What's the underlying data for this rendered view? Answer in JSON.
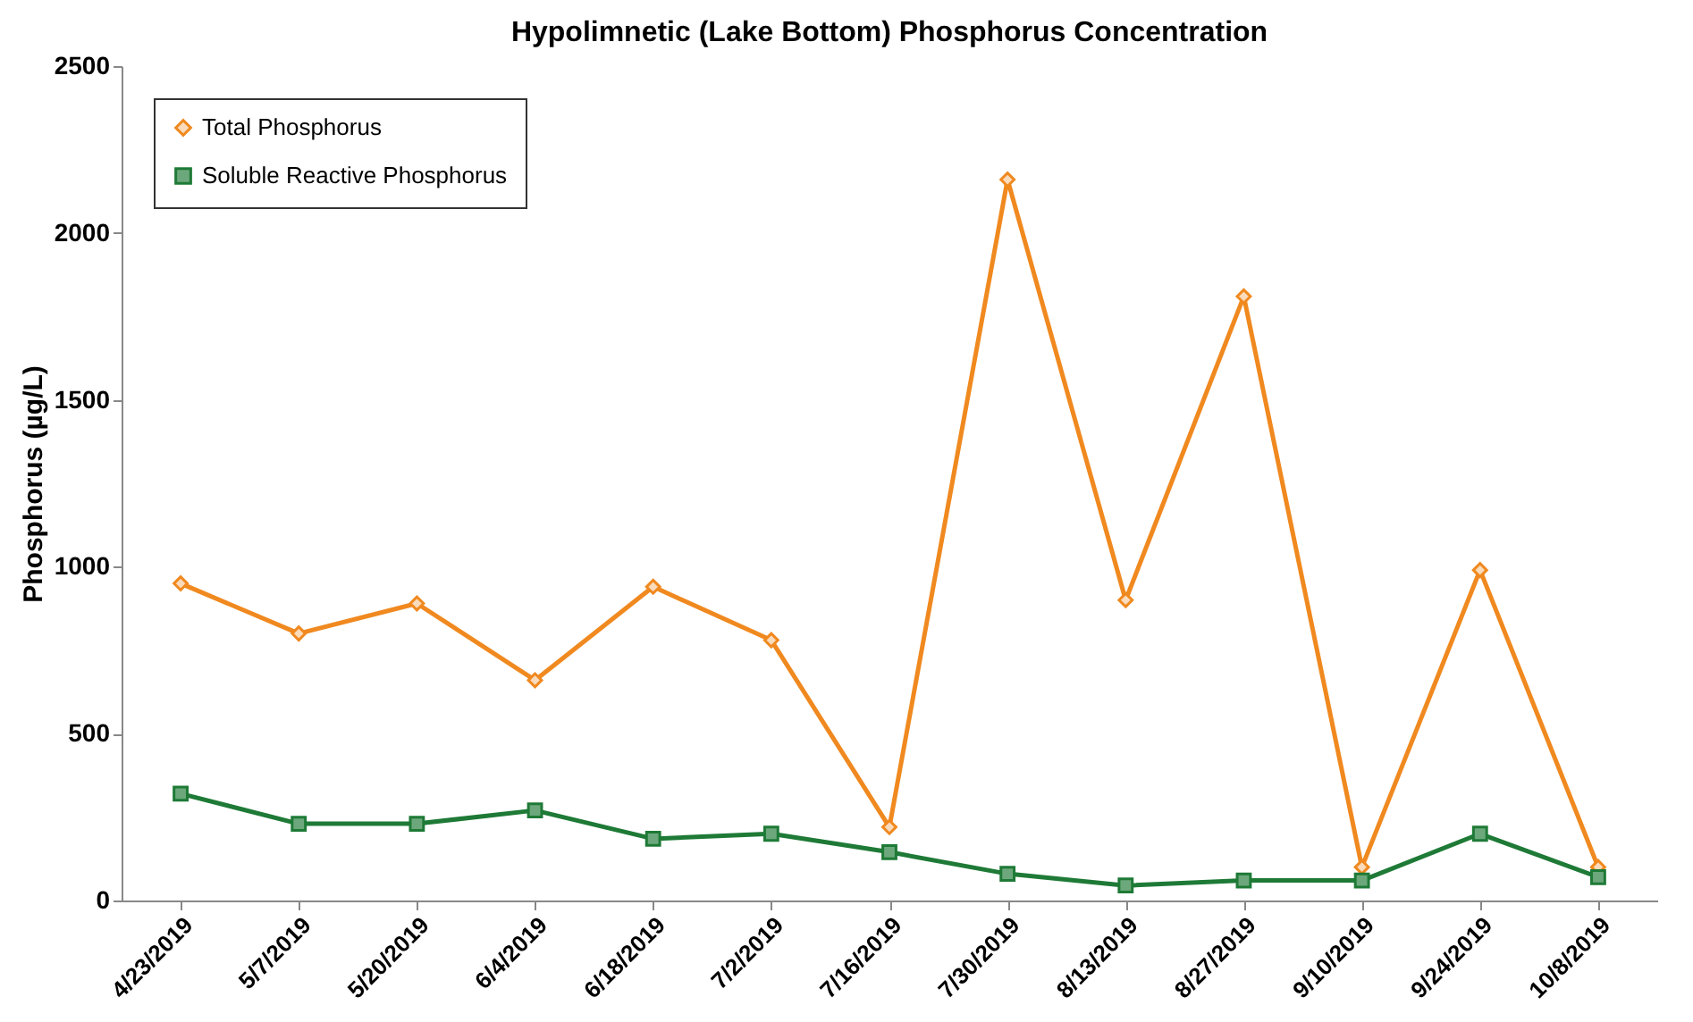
{
  "chart_data": {
    "type": "line",
    "title": "Hypolimnetic (Lake Bottom) Phosphorus Concentration",
    "ylabel": "Phosphorus (µg/L)",
    "categories": [
      "4/23/2019",
      "5/7/2019",
      "5/20/2019",
      "6/4/2019",
      "6/18/2019",
      "7/2/2019",
      "7/16/2019",
      "7/30/2019",
      "8/13/2019",
      "8/27/2019",
      "9/10/2019",
      "9/24/2019",
      "10/8/2019"
    ],
    "series": [
      {
        "name": "Total Phosphorus",
        "color": "#f0891f",
        "marker": "diamond",
        "values": [
          950,
          800,
          890,
          660,
          940,
          780,
          220,
          2160,
          900,
          1810,
          100,
          990,
          100
        ]
      },
      {
        "name": "Soluble Reactive Phosphorus",
        "color": "#1e7a36",
        "marker": "square",
        "values": [
          320,
          230,
          230,
          270,
          185,
          200,
          145,
          80,
          45,
          60,
          60,
          200,
          70
        ]
      }
    ],
    "ylim": [
      0,
      2500
    ],
    "yticks": [
      0,
      500,
      1000,
      1500,
      2000,
      2500
    ],
    "grid": false,
    "legend": "top left",
    "line_style": "solid"
  }
}
